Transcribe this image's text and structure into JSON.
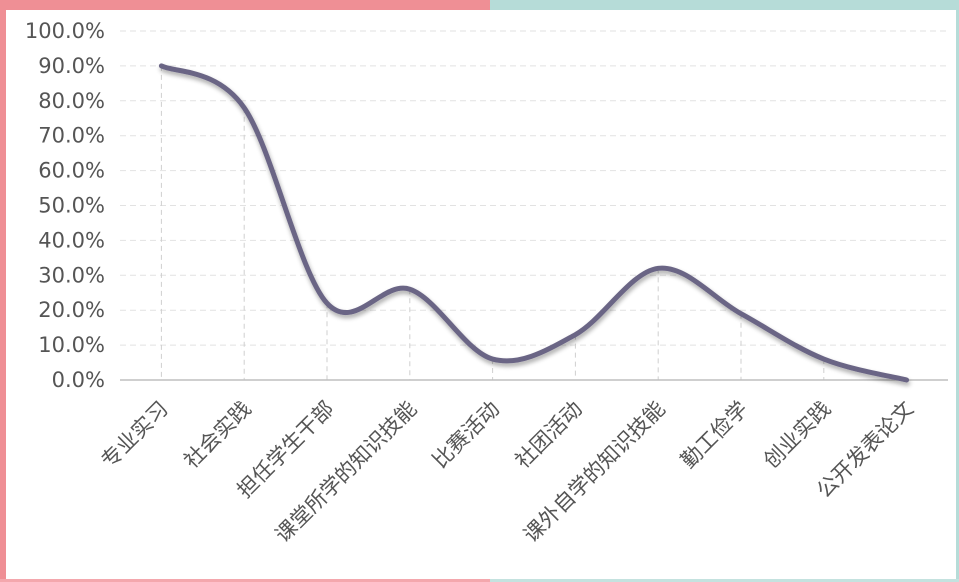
{
  "colors": {
    "line": "#6b6585",
    "frame_top_left": "#ef8f95",
    "frame_top_right": "#b6dcd8",
    "frame_left": "#ef8f95",
    "frame_bottom_left": "#f4a7ad",
    "frame_bottom_right": "#c4e2df",
    "frame_right": "#b6dcd8",
    "gridline": "#e2e2e2",
    "dropline": "#cfcfcf",
    "axis": "#bfbfbf",
    "text": "#555555"
  },
  "chart_data": {
    "type": "line",
    "title": "",
    "xlabel": "",
    "ylabel": "",
    "categories": [
      "专业实习",
      "社会实践",
      "担任学生干部",
      "课堂所学的知识技能",
      "比赛活动",
      "社团活动",
      "课外自学的知识技能",
      "勤工俭学",
      "创业实践",
      "公开发表论文"
    ],
    "values": [
      0.9,
      0.78,
      0.22,
      0.26,
      0.06,
      0.13,
      0.32,
      0.19,
      0.06,
      0.0
    ],
    "ylim": [
      0,
      1
    ],
    "yticks": [
      "0.0%",
      "10.0%",
      "20.0%",
      "30.0%",
      "40.0%",
      "50.0%",
      "60.0%",
      "70.0%",
      "80.0%",
      "90.0%",
      "100.0%"
    ],
    "grid": true,
    "smooth": true,
    "drop_lines": true,
    "legend": "none"
  }
}
